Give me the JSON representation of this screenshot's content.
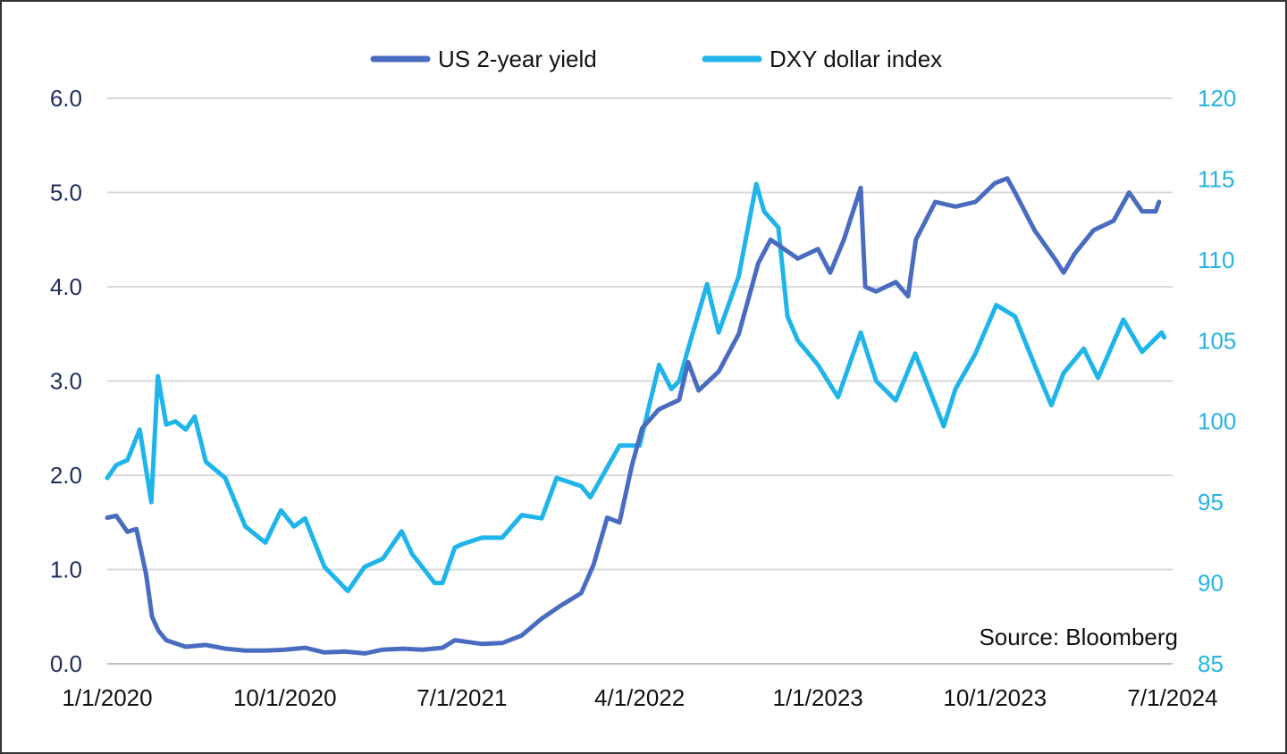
{
  "chart_data": {
    "type": "line",
    "title": "",
    "xlabel": "",
    "ylabel": "",
    "x_ticks": [
      "1/1/2020",
      "10/1/2020",
      "7/1/2021",
      "4/1/2022",
      "1/1/2023",
      "10/1/2023",
      "7/1/2024"
    ],
    "xlim": [
      "2020-01-01",
      "2024-07-01"
    ],
    "y_left": {
      "ticks": [
        "0.0",
        "1.0",
        "2.0",
        "3.0",
        "4.0",
        "5.0",
        "6.0"
      ],
      "ylim": [
        0,
        6
      ]
    },
    "y_right": {
      "ticks": [
        "85",
        "90",
        "95",
        "100",
        "105",
        "110",
        "115",
        "120"
      ],
      "ylim": [
        85,
        120
      ]
    },
    "grid": "horizontal",
    "legend_position": "top-center",
    "source": "Source: Bloomberg",
    "series": [
      {
        "name": "US 2-year yield",
        "axis": "left",
        "color": "#4a6cc0",
        "points": [
          [
            "2020-01-01",
            1.55
          ],
          [
            "2020-01-15",
            1.57
          ],
          [
            "2020-02-01",
            1.4
          ],
          [
            "2020-02-15",
            1.43
          ],
          [
            "2020-03-01",
            0.95
          ],
          [
            "2020-03-10",
            0.5
          ],
          [
            "2020-03-20",
            0.35
          ],
          [
            "2020-04-01",
            0.25
          ],
          [
            "2020-05-01",
            0.18
          ],
          [
            "2020-06-01",
            0.2
          ],
          [
            "2020-07-01",
            0.16
          ],
          [
            "2020-08-01",
            0.14
          ],
          [
            "2020-09-01",
            0.14
          ],
          [
            "2020-10-01",
            0.15
          ],
          [
            "2020-11-01",
            0.17
          ],
          [
            "2020-12-01",
            0.12
          ],
          [
            "2021-01-01",
            0.13
          ],
          [
            "2021-02-01",
            0.11
          ],
          [
            "2021-03-01",
            0.15
          ],
          [
            "2021-04-01",
            0.16
          ],
          [
            "2021-05-01",
            0.15
          ],
          [
            "2021-06-01",
            0.17
          ],
          [
            "2021-06-20",
            0.25
          ],
          [
            "2021-07-01",
            0.24
          ],
          [
            "2021-08-01",
            0.21
          ],
          [
            "2021-09-01",
            0.22
          ],
          [
            "2021-10-01",
            0.3
          ],
          [
            "2021-11-01",
            0.48
          ],
          [
            "2021-12-01",
            0.62
          ],
          [
            "2022-01-01",
            0.75
          ],
          [
            "2022-01-20",
            1.05
          ],
          [
            "2022-02-10",
            1.55
          ],
          [
            "2022-03-01",
            1.5
          ],
          [
            "2022-03-20",
            2.1
          ],
          [
            "2022-04-05",
            2.5
          ],
          [
            "2022-05-01",
            2.7
          ],
          [
            "2022-06-01",
            2.8
          ],
          [
            "2022-06-15",
            3.2
          ],
          [
            "2022-07-01",
            2.9
          ],
          [
            "2022-08-01",
            3.1
          ],
          [
            "2022-09-01",
            3.5
          ],
          [
            "2022-10-01",
            4.25
          ],
          [
            "2022-10-20",
            4.5
          ],
          [
            "2022-11-10",
            4.4
          ],
          [
            "2022-12-01",
            4.3
          ],
          [
            "2023-01-01",
            4.4
          ],
          [
            "2023-01-20",
            4.15
          ],
          [
            "2023-02-10",
            4.5
          ],
          [
            "2023-03-08",
            5.05
          ],
          [
            "2023-03-15",
            4.0
          ],
          [
            "2023-04-01",
            3.95
          ],
          [
            "2023-05-01",
            4.05
          ],
          [
            "2023-05-20",
            3.9
          ],
          [
            "2023-06-01",
            4.5
          ],
          [
            "2023-07-01",
            4.9
          ],
          [
            "2023-08-01",
            4.85
          ],
          [
            "2023-09-01",
            4.9
          ],
          [
            "2023-10-01",
            5.1
          ],
          [
            "2023-10-20",
            5.15
          ],
          [
            "2023-11-01",
            5.0
          ],
          [
            "2023-12-01",
            4.6
          ],
          [
            "2024-01-01",
            4.3
          ],
          [
            "2024-01-15",
            4.15
          ],
          [
            "2024-02-01",
            4.35
          ],
          [
            "2024-03-01",
            4.6
          ],
          [
            "2024-04-01",
            4.7
          ],
          [
            "2024-04-25",
            5.0
          ],
          [
            "2024-05-15",
            4.8
          ],
          [
            "2024-06-05",
            4.8
          ],
          [
            "2024-06-10",
            4.9
          ]
        ]
      },
      {
        "name": "DXY dollar index",
        "axis": "right",
        "color": "#1fb4ea",
        "points": [
          [
            "2020-01-01",
            96.5
          ],
          [
            "2020-01-15",
            97.3
          ],
          [
            "2020-02-01",
            97.6
          ],
          [
            "2020-02-20",
            99.5
          ],
          [
            "2020-03-09",
            95.0
          ],
          [
            "2020-03-19",
            102.8
          ],
          [
            "2020-04-01",
            99.8
          ],
          [
            "2020-04-15",
            100.0
          ],
          [
            "2020-05-01",
            99.5
          ],
          [
            "2020-05-15",
            100.3
          ],
          [
            "2020-06-01",
            97.5
          ],
          [
            "2020-07-01",
            96.5
          ],
          [
            "2020-08-01",
            93.5
          ],
          [
            "2020-09-01",
            92.5
          ],
          [
            "2020-09-25",
            94.5
          ],
          [
            "2020-10-15",
            93.5
          ],
          [
            "2020-11-01",
            94.0
          ],
          [
            "2020-12-01",
            91.0
          ],
          [
            "2021-01-06",
            89.5
          ],
          [
            "2021-02-01",
            91.0
          ],
          [
            "2021-03-01",
            91.5
          ],
          [
            "2021-03-30",
            93.2
          ],
          [
            "2021-04-15",
            91.8
          ],
          [
            "2021-05-20",
            90.0
          ],
          [
            "2021-06-01",
            90.0
          ],
          [
            "2021-06-20",
            92.2
          ],
          [
            "2021-07-01",
            92.4
          ],
          [
            "2021-08-01",
            92.8
          ],
          [
            "2021-09-01",
            92.8
          ],
          [
            "2021-10-01",
            94.2
          ],
          [
            "2021-11-01",
            94.0
          ],
          [
            "2021-11-24",
            96.5
          ],
          [
            "2022-01-01",
            96.0
          ],
          [
            "2022-01-15",
            95.3
          ],
          [
            "2022-02-01",
            96.5
          ],
          [
            "2022-03-01",
            98.5
          ],
          [
            "2022-04-01",
            98.5
          ],
          [
            "2022-05-01",
            103.5
          ],
          [
            "2022-05-20",
            102.0
          ],
          [
            "2022-06-01",
            102.5
          ],
          [
            "2022-06-15",
            104.5
          ],
          [
            "2022-07-14",
            108.5
          ],
          [
            "2022-08-01",
            105.5
          ],
          [
            "2022-09-01",
            109.0
          ],
          [
            "2022-09-28",
            114.7
          ],
          [
            "2022-10-10",
            113.0
          ],
          [
            "2022-11-01",
            112.0
          ],
          [
            "2022-11-15",
            106.5
          ],
          [
            "2022-12-01",
            105.0
          ],
          [
            "2023-01-01",
            103.5
          ],
          [
            "2023-02-01",
            101.5
          ],
          [
            "2023-03-08",
            105.5
          ],
          [
            "2023-04-01",
            102.5
          ],
          [
            "2023-05-01",
            101.3
          ],
          [
            "2023-05-31",
            104.2
          ],
          [
            "2023-07-14",
            99.7
          ],
          [
            "2023-08-01",
            102.0
          ],
          [
            "2023-09-01",
            104.2
          ],
          [
            "2023-10-03",
            107.2
          ],
          [
            "2023-11-01",
            106.5
          ],
          [
            "2023-12-01",
            103.5
          ],
          [
            "2023-12-27",
            101.0
          ],
          [
            "2024-01-15",
            103.0
          ],
          [
            "2024-02-15",
            104.5
          ],
          [
            "2024-03-08",
            102.7
          ],
          [
            "2024-04-16",
            106.3
          ],
          [
            "2024-05-15",
            104.3
          ],
          [
            "2024-06-14",
            105.5
          ],
          [
            "2024-06-18",
            105.2
          ]
        ]
      }
    ]
  }
}
